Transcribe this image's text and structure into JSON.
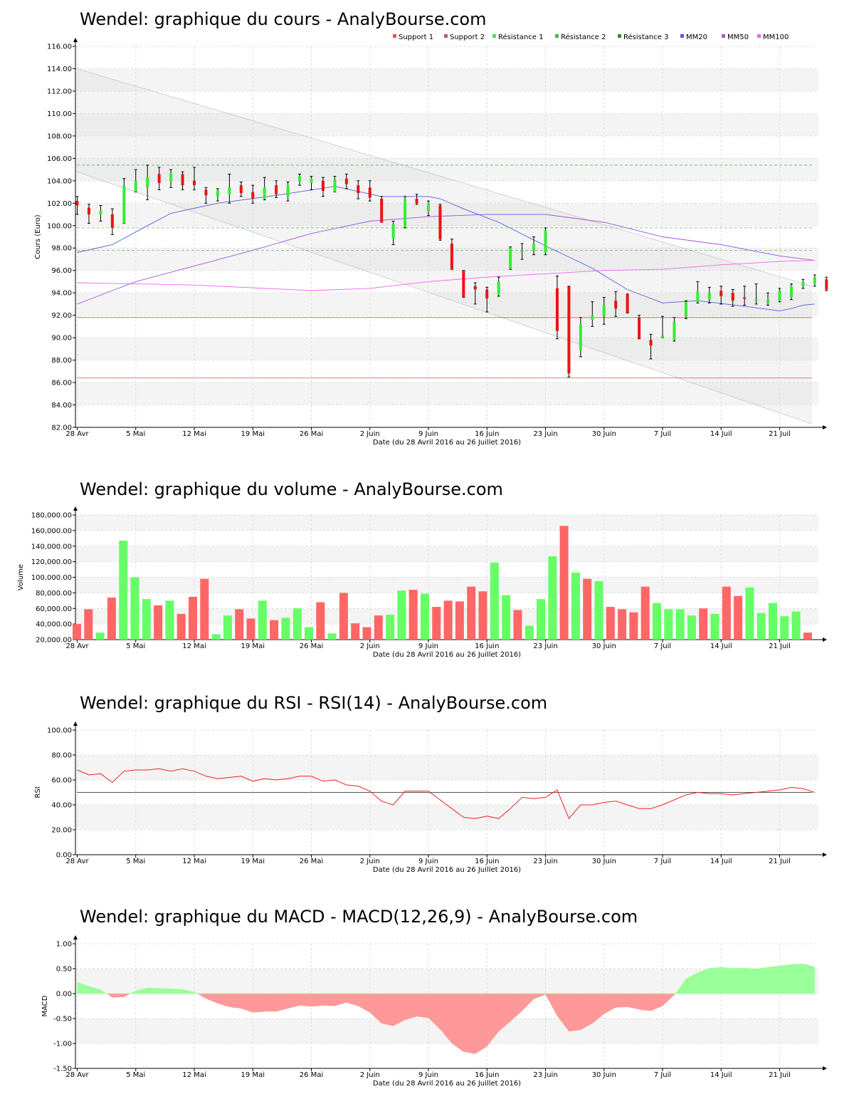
{
  "chart_data": [
    {
      "id": "price",
      "type": "candlestick",
      "title": "Wendel: graphique du cours - AnalyBourse.com",
      "ylabel": "Cours (Euro)",
      "xlabel": "Date (du 28 Avril 2016 au 26 Juillet 2016)",
      "ylim": [
        82,
        116
      ],
      "ytick_step": 2,
      "ytick_decimals": 2,
      "x_tick_labels": [
        "28 Avr",
        "5 Mai",
        "12 Mai",
        "19 Mai",
        "26 Mai",
        "2 Juin",
        "9 Juin",
        "16 Juin",
        "23 Juin",
        "30 Juin",
        "7 Juil",
        "14 Juil",
        "21 Juil"
      ],
      "legend": [
        {
          "name": "Support 1",
          "color": "#e05555"
        },
        {
          "name": "Support 2",
          "color": "#b06060"
        },
        {
          "name": "Résistance 1",
          "color": "#55dd55"
        },
        {
          "name": "Résistance 2",
          "color": "#44bb44"
        },
        {
          "name": "Résistance 3",
          "color": "#338833"
        },
        {
          "name": "MM20",
          "color": "#5555ff"
        },
        {
          "name": "MM50",
          "color": "#a055e0"
        },
        {
          "name": "MM100",
          "color": "#ee66ee"
        }
      ],
      "up_color": "#33ee33",
      "down_color": "#ee1111",
      "support_levels": [
        91.8,
        86.4
      ],
      "resistance_levels": [
        105.4,
        99.8,
        97.8
      ],
      "trend_channel": {
        "upper": [
          114.0,
          94.6
        ],
        "lower": [
          104.8,
          82.3
        ]
      },
      "candles": [
        {
          "o": 102.2,
          "h": 102.6,
          "l": 101.0,
          "c": 101.8
        },
        {
          "o": 101.6,
          "h": 101.9,
          "l": 100.2,
          "c": 101.0
        },
        {
          "o": 101.0,
          "h": 101.8,
          "l": 100.4,
          "c": 101.3
        },
        {
          "o": 101.0,
          "h": 101.5,
          "l": 99.2,
          "c": 99.8
        },
        {
          "o": 100.2,
          "h": 104.2,
          "l": 100.2,
          "c": 103.6
        },
        {
          "o": 103.0,
          "h": 105.0,
          "l": 103.0,
          "c": 104.0
        },
        {
          "o": 103.4,
          "h": 105.4,
          "l": 102.3,
          "c": 104.3
        },
        {
          "o": 104.6,
          "h": 105.2,
          "l": 103.2,
          "c": 103.8
        },
        {
          "o": 103.9,
          "h": 105.0,
          "l": 103.4,
          "c": 104.7
        },
        {
          "o": 104.6,
          "h": 104.8,
          "l": 103.2,
          "c": 103.6
        },
        {
          "o": 104.0,
          "h": 105.2,
          "l": 103.2,
          "c": 103.6
        },
        {
          "o": 103.2,
          "h": 103.4,
          "l": 102.0,
          "c": 102.7
        },
        {
          "o": 102.6,
          "h": 103.3,
          "l": 102.2,
          "c": 103.2
        },
        {
          "o": 102.8,
          "h": 104.6,
          "l": 102.0,
          "c": 103.4
        },
        {
          "o": 103.6,
          "h": 103.9,
          "l": 102.6,
          "c": 102.9
        },
        {
          "o": 103.0,
          "h": 103.6,
          "l": 102.0,
          "c": 102.4
        },
        {
          "o": 102.4,
          "h": 104.3,
          "l": 102.3,
          "c": 103.4
        },
        {
          "o": 103.6,
          "h": 104.0,
          "l": 102.5,
          "c": 102.8
        },
        {
          "o": 102.6,
          "h": 103.9,
          "l": 102.2,
          "c": 103.6
        },
        {
          "o": 103.9,
          "h": 104.6,
          "l": 103.6,
          "c": 104.4
        },
        {
          "o": 103.8,
          "h": 104.4,
          "l": 103.2,
          "c": 104.2
        },
        {
          "o": 104.0,
          "h": 104.3,
          "l": 102.6,
          "c": 103.1
        },
        {
          "o": 103.0,
          "h": 104.4,
          "l": 103.0,
          "c": 104.1
        },
        {
          "o": 104.2,
          "h": 104.6,
          "l": 103.3,
          "c": 103.7
        },
        {
          "o": 103.6,
          "h": 104.0,
          "l": 102.4,
          "c": 102.9
        },
        {
          "o": 103.4,
          "h": 104.0,
          "l": 102.2,
          "c": 102.5
        },
        {
          "o": 102.4,
          "h": 102.6,
          "l": 100.3,
          "c": 100.3
        },
        {
          "o": 98.8,
          "h": 100.4,
          "l": 98.3,
          "c": 100.1
        },
        {
          "o": 99.9,
          "h": 102.6,
          "l": 99.8,
          "c": 102.4
        },
        {
          "o": 102.4,
          "h": 102.8,
          "l": 101.9,
          "c": 102.0
        },
        {
          "o": 101.3,
          "h": 102.2,
          "l": 100.9,
          "c": 102.0
        },
        {
          "o": 101.8,
          "h": 101.9,
          "l": 98.7,
          "c": 98.8
        },
        {
          "o": 98.4,
          "h": 98.8,
          "l": 96.1,
          "c": 96.1
        },
        {
          "o": 96.0,
          "h": 96.0,
          "l": 93.6,
          "c": 93.6
        },
        {
          "o": 94.6,
          "h": 94.9,
          "l": 93.0,
          "c": 94.3
        },
        {
          "o": 94.3,
          "h": 94.5,
          "l": 92.3,
          "c": 93.5
        },
        {
          "o": 93.8,
          "h": 95.4,
          "l": 93.7,
          "c": 95.0
        },
        {
          "o": 96.2,
          "h": 98.1,
          "l": 96.1,
          "c": 98.0
        },
        {
          "o": 97.6,
          "h": 98.4,
          "l": 97.0,
          "c": 97.8
        },
        {
          "o": 97.8,
          "h": 99.0,
          "l": 97.4,
          "c": 98.4
        },
        {
          "o": 97.6,
          "h": 99.8,
          "l": 97.4,
          "c": 99.6
        },
        {
          "o": 94.4,
          "h": 95.5,
          "l": 89.9,
          "c": 90.6
        },
        {
          "o": 94.6,
          "h": 94.6,
          "l": 86.5,
          "c": 86.8
        },
        {
          "o": 88.9,
          "h": 91.8,
          "l": 88.3,
          "c": 91.2
        },
        {
          "o": 91.6,
          "h": 93.2,
          "l": 91.0,
          "c": 92.0
        },
        {
          "o": 91.9,
          "h": 93.6,
          "l": 91.2,
          "c": 92.9
        },
        {
          "o": 93.3,
          "h": 94.1,
          "l": 91.9,
          "c": 92.6
        },
        {
          "o": 93.9,
          "h": 93.9,
          "l": 92.2,
          "c": 92.2
        },
        {
          "o": 91.8,
          "h": 92.0,
          "l": 89.9,
          "c": 89.9
        },
        {
          "o": 89.8,
          "h": 90.3,
          "l": 88.1,
          "c": 89.3
        },
        {
          "o": 90.0,
          "h": 91.9,
          "l": 90.0,
          "c": 90.2
        },
        {
          "o": 89.8,
          "h": 91.8,
          "l": 89.7,
          "c": 91.4
        },
        {
          "o": 91.9,
          "h": 93.3,
          "l": 91.7,
          "c": 93.2
        },
        {
          "o": 93.2,
          "h": 95.0,
          "l": 93.1,
          "c": 94.1
        },
        {
          "o": 93.4,
          "h": 94.5,
          "l": 93.1,
          "c": 94.0
        },
        {
          "o": 94.2,
          "h": 94.6,
          "l": 93.0,
          "c": 93.7
        },
        {
          "o": 94.0,
          "h": 94.3,
          "l": 92.8,
          "c": 93.3
        },
        {
          "o": 93.6,
          "h": 94.6,
          "l": 92.9,
          "c": 93.5
        },
        {
          "o": 93.3,
          "h": 94.8,
          "l": 93.0,
          "c": 93.4
        },
        {
          "o": 93.1,
          "h": 94.0,
          "l": 92.9,
          "c": 93.4
        },
        {
          "o": 93.3,
          "h": 94.4,
          "l": 93.2,
          "c": 94.2
        },
        {
          "o": 93.6,
          "h": 94.8,
          "l": 93.4,
          "c": 94.6
        },
        {
          "o": 94.6,
          "h": 95.2,
          "l": 94.4,
          "c": 95.0
        },
        {
          "o": 94.8,
          "h": 95.6,
          "l": 94.6,
          "c": 95.4
        },
        {
          "o": 95.2,
          "h": 95.4,
          "l": 94.2,
          "c": 94.3
        }
      ],
      "moving_averages": [
        {
          "name": "MM20",
          "color": "#5a5adc",
          "points": [
            [
              0,
              97.6
            ],
            [
              3,
              98.3
            ],
            [
              6,
              100.0
            ],
            [
              8,
              101.1
            ],
            [
              12,
              102.0
            ],
            [
              17,
              102.7
            ],
            [
              22,
              103.5
            ],
            [
              26,
              102.6
            ],
            [
              30,
              102.6
            ],
            [
              31,
              102.4
            ],
            [
              33,
              101.5
            ],
            [
              36,
              100.3
            ],
            [
              40,
              98.2
            ],
            [
              44,
              96.2
            ],
            [
              47,
              94.3
            ],
            [
              50,
              93.1
            ],
            [
              53,
              93.3
            ],
            [
              57,
              92.8
            ],
            [
              60,
              92.4
            ],
            [
              61,
              92.6
            ],
            [
              62,
              92.9
            ],
            [
              63,
              93.0
            ]
          ]
        },
        {
          "name": "MM50",
          "color": "#a055e0",
          "points": [
            [
              0,
              93.0
            ],
            [
              5,
              95.0
            ],
            [
              10,
              96.4
            ],
            [
              15,
              97.8
            ],
            [
              20,
              99.3
            ],
            [
              25,
              100.4
            ],
            [
              30,
              100.8
            ],
            [
              35,
              101.0
            ],
            [
              40,
              101.0
            ],
            [
              45,
              100.3
            ],
            [
              50,
              99.0
            ],
            [
              55,
              98.3
            ],
            [
              60,
              97.3
            ],
            [
              63,
              96.9
            ]
          ]
        },
        {
          "name": "MM100",
          "color": "#ee66ee",
          "points": [
            [
              0,
              94.9
            ],
            [
              10,
              94.7
            ],
            [
              20,
              94.2
            ],
            [
              25,
              94.4
            ],
            [
              30,
              95.0
            ],
            [
              35,
              95.4
            ],
            [
              40,
              95.7
            ],
            [
              45,
              96.0
            ],
            [
              50,
              96.1
            ],
            [
              55,
              96.5
            ],
            [
              60,
              96.8
            ],
            [
              63,
              96.9
            ]
          ]
        }
      ]
    },
    {
      "id": "volume",
      "type": "bar",
      "title": "Wendel: graphique du volume - AnalyBourse.com",
      "ylabel": "Volume",
      "xlabel": "Date (du 28 Avril 2016 au 26 Juillet 2016)",
      "ylim": [
        20000,
        180000
      ],
      "ytick_step": 20000,
      "x_tick_labels": [
        "28 Avr",
        "5 Mai",
        "12 Mai",
        "19 Mai",
        "26 Mai",
        "2 Juin",
        "9 Juin",
        "16 Juin",
        "23 Juin",
        "30 Juin",
        "7 Juil",
        "14 Juil",
        "21 Juil"
      ],
      "up_color": "#66ff66",
      "down_color": "#ff6666",
      "values": [
        40000,
        59000,
        29000,
        74000,
        147000,
        100000,
        72000,
        64000,
        70000,
        53000,
        75000,
        98000,
        27000,
        51000,
        59000,
        47000,
        70000,
        45000,
        48000,
        60000,
        36000,
        68000,
        28000,
        80000,
        41000,
        36000,
        51000,
        52000,
        83000,
        84000,
        79000,
        62000,
        70000,
        69000,
        88000,
        82000,
        119000,
        77000,
        58000,
        38000,
        72000,
        127000,
        166000,
        106000,
        98000,
        95000,
        62000,
        59000,
        55000,
        88000,
        67000,
        59000,
        59000,
        51000,
        60000,
        53000,
        88000,
        76000,
        87000,
        54000,
        67000,
        50000,
        56000,
        29000
      ],
      "directions": [
        "d",
        "d",
        "u",
        "d",
        "u",
        "u",
        "u",
        "d",
        "u",
        "d",
        "d",
        "d",
        "u",
        "u",
        "d",
        "d",
        "u",
        "d",
        "u",
        "u",
        "u",
        "d",
        "u",
        "d",
        "d",
        "d",
        "d",
        "u",
        "u",
        "d",
        "u",
        "d",
        "d",
        "d",
        "d",
        "d",
        "u",
        "u",
        "d",
        "u",
        "u",
        "u",
        "d",
        "u",
        "d",
        "u",
        "d",
        "d",
        "d",
        "d",
        "u",
        "u",
        "u",
        "u",
        "d",
        "u",
        "d",
        "d",
        "u",
        "u",
        "u",
        "u",
        "u",
        "d"
      ]
    },
    {
      "id": "rsi",
      "type": "line",
      "title": "Wendel: graphique du RSI - RSI(14) - AnalyBourse.com",
      "ylabel": "RSI",
      "xlabel": "Date (du 28 Avril 2016 au 26 Juillet 2016)",
      "ylim": [
        0,
        100
      ],
      "ytick_step": 20,
      "reference_line": 50,
      "x_tick_labels": [
        "28 Avr",
        "5 Mai",
        "12 Mai",
        "19 Mai",
        "26 Mai",
        "2 Juin",
        "9 Juin",
        "16 Juin",
        "23 Juin",
        "30 Juin",
        "7 Juil",
        "14 Juil",
        "21 Juil"
      ],
      "color": "#ee2222",
      "values": [
        68,
        64,
        65,
        58,
        67,
        68,
        68,
        69,
        67,
        69,
        67,
        63,
        61,
        62,
        63,
        59,
        61,
        60,
        61,
        63,
        63,
        59,
        60,
        56,
        55,
        51,
        43,
        40,
        51,
        51,
        51,
        44,
        37,
        30,
        29,
        31,
        29,
        37,
        46,
        45,
        46,
        52,
        29,
        40,
        40,
        42,
        43,
        40,
        37,
        37,
        40,
        44,
        48,
        50,
        49,
        49,
        48,
        49,
        50,
        51,
        52,
        54,
        53,
        50
      ]
    },
    {
      "id": "macd",
      "type": "area",
      "title": "Wendel: graphique du MACD - MACD(12,26,9) - AnalyBourse.com",
      "ylabel": "MACD",
      "xlabel": "Date (du 28 Avril 2016 au 26 Juillet 2016)",
      "ylim": [
        -1.5,
        1.0
      ],
      "ytick_step": 0.5,
      "ytick_decimals": 2,
      "x_tick_labels": [
        "28 Avr",
        "5 Mai",
        "12 Mai",
        "19 Mai",
        "26 Mai",
        "2 Juin",
        "9 Juin",
        "16 Juin",
        "23 Juin",
        "30 Juin",
        "7 Juil",
        "14 Juil",
        "21 Juil"
      ],
      "positive_color": "#99ff99",
      "negative_color": "#ff9999",
      "values": [
        0.23,
        0.15,
        0.08,
        -0.08,
        -0.07,
        0.06,
        0.12,
        0.11,
        0.1,
        0.09,
        0.03,
        -0.1,
        -0.2,
        -0.27,
        -0.3,
        -0.38,
        -0.36,
        -0.36,
        -0.3,
        -0.24,
        -0.26,
        -0.24,
        -0.25,
        -0.18,
        -0.25,
        -0.38,
        -0.6,
        -0.65,
        -0.53,
        -0.46,
        -0.49,
        -0.72,
        -1.0,
        -1.17,
        -1.21,
        -1.06,
        -0.76,
        -0.56,
        -0.35,
        -0.11,
        -0.02,
        -0.45,
        -0.76,
        -0.73,
        -0.6,
        -0.41,
        -0.28,
        -0.27,
        -0.32,
        -0.35,
        -0.25,
        -0.03,
        0.3,
        0.42,
        0.51,
        0.53,
        0.51,
        0.51,
        0.5,
        0.53,
        0.56,
        0.59,
        0.6,
        0.54
      ]
    }
  ]
}
